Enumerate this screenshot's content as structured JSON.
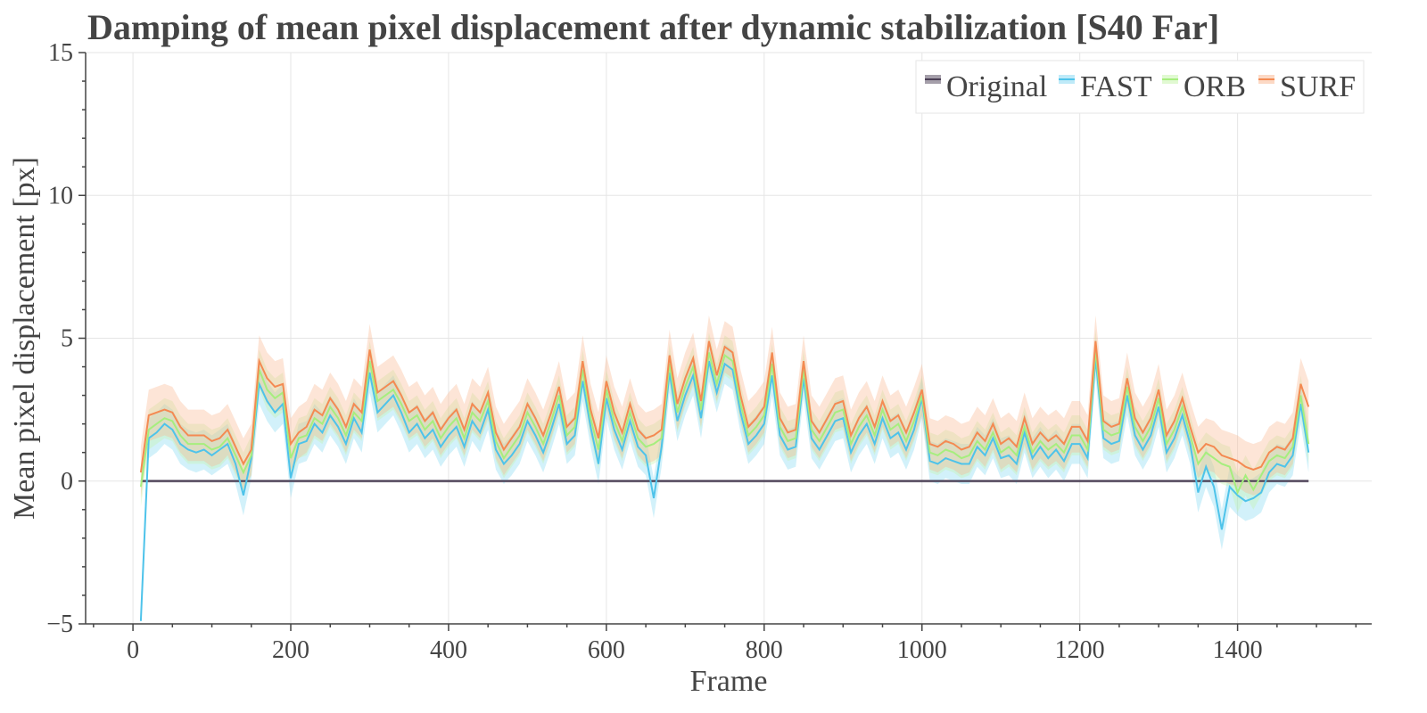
{
  "chart_data": {
    "type": "line",
    "title": "Damping of mean pixel displacement after dynamic stabilization [S40 Far]",
    "xlabel": "Frame",
    "ylabel": "Mean pixel displacement [px]",
    "xlim": [
      -60,
      1570
    ],
    "ylim": [
      -5,
      15
    ],
    "xticks": [
      0,
      200,
      400,
      600,
      800,
      1000,
      1200,
      1400
    ],
    "xtick_labels": [
      "0",
      "200",
      "400",
      "600",
      "800",
      "1000",
      "1200",
      "1400"
    ],
    "yticks": [
      -5,
      0,
      5,
      10,
      15
    ],
    "ytick_labels": [
      "−5",
      "0",
      "5",
      "10",
      "15"
    ],
    "grid": true,
    "legend_position": "top-right",
    "x": [
      10,
      20,
      30,
      40,
      50,
      60,
      70,
      80,
      90,
      100,
      110,
      120,
      130,
      140,
      150,
      160,
      170,
      180,
      190,
      200,
      210,
      220,
      230,
      240,
      250,
      260,
      270,
      280,
      290,
      300,
      310,
      320,
      330,
      340,
      350,
      360,
      370,
      380,
      390,
      400,
      410,
      420,
      430,
      440,
      450,
      460,
      470,
      480,
      490,
      500,
      510,
      520,
      530,
      540,
      550,
      560,
      570,
      580,
      590,
      600,
      610,
      620,
      630,
      640,
      650,
      660,
      670,
      680,
      690,
      700,
      710,
      720,
      730,
      740,
      750,
      760,
      770,
      780,
      790,
      800,
      810,
      820,
      830,
      840,
      850,
      860,
      870,
      880,
      890,
      900,
      910,
      920,
      930,
      940,
      950,
      960,
      970,
      980,
      990,
      1000,
      1010,
      1020,
      1030,
      1040,
      1050,
      1060,
      1070,
      1080,
      1090,
      1100,
      1110,
      1120,
      1130,
      1140,
      1150,
      1160,
      1170,
      1180,
      1190,
      1200,
      1210,
      1220,
      1230,
      1240,
      1250,
      1260,
      1270,
      1280,
      1290,
      1300,
      1310,
      1320,
      1330,
      1340,
      1350,
      1360,
      1370,
      1380,
      1390,
      1400,
      1410,
      1420,
      1430,
      1440,
      1450,
      1460,
      1470,
      1480,
      1490
    ],
    "series": [
      {
        "name": "Original",
        "color": "#4b3f55",
        "band_color": "#4b3f55",
        "values": [
          0,
          0,
          0,
          0,
          0,
          0,
          0,
          0,
          0,
          0,
          0,
          0,
          0,
          0,
          0,
          0,
          0,
          0,
          0,
          0,
          0,
          0,
          0,
          0,
          0,
          0,
          0,
          0,
          0,
          0,
          0,
          0,
          0,
          0,
          0,
          0,
          0,
          0,
          0,
          0,
          0,
          0,
          0,
          0,
          0,
          0,
          0,
          0,
          0,
          0,
          0,
          0,
          0,
          0,
          0,
          0,
          0,
          0,
          0,
          0,
          0,
          0,
          0,
          0,
          0,
          0,
          0,
          0,
          0,
          0,
          0,
          0,
          0,
          0,
          0,
          0,
          0,
          0,
          0,
          0,
          0,
          0,
          0,
          0,
          0,
          0,
          0,
          0,
          0,
          0,
          0,
          0,
          0,
          0,
          0,
          0,
          0,
          0,
          0,
          0,
          0,
          0,
          0,
          0,
          0,
          0,
          0,
          0,
          0,
          0,
          0,
          0,
          0,
          0,
          0,
          0,
          0,
          0,
          0,
          0,
          0,
          0,
          0,
          0,
          0,
          0,
          0,
          0,
          0,
          0,
          0,
          0,
          0,
          0,
          0,
          0,
          0,
          0,
          0,
          0,
          0,
          0,
          0,
          0,
          0,
          0,
          0,
          0,
          0
        ],
        "band": 0.05
      },
      {
        "name": "FAST",
        "color": "#4ec3ea",
        "band_color": "#7fd6f2",
        "values": [
          -4.9,
          1.5,
          1.7,
          2.0,
          1.8,
          1.3,
          1.1,
          1.0,
          1.1,
          0.9,
          1.1,
          1.3,
          0.6,
          -0.5,
          0.8,
          3.4,
          2.8,
          2.4,
          2.7,
          0.1,
          1.3,
          1.4,
          2.0,
          1.7,
          2.3,
          1.9,
          1.3,
          2.2,
          1.7,
          3.8,
          2.4,
          2.7,
          3.0,
          2.4,
          1.7,
          2.0,
          1.5,
          1.8,
          1.2,
          1.6,
          1.9,
          1.2,
          2.1,
          1.7,
          2.5,
          1.1,
          0.6,
          0.9,
          1.3,
          2.1,
          1.6,
          1.0,
          1.8,
          2.7,
          1.3,
          1.6,
          3.5,
          1.9,
          0.6,
          2.9,
          1.8,
          1.1,
          2.1,
          1.2,
          0.9,
          -0.6,
          1.2,
          3.8,
          2.1,
          3.0,
          3.7,
          2.2,
          4.2,
          3.1,
          4.1,
          3.9,
          2.4,
          1.3,
          1.6,
          2.0,
          3.7,
          1.6,
          1.1,
          1.2,
          3.6,
          1.5,
          1.1,
          1.6,
          2.1,
          2.2,
          1.0,
          1.6,
          2.0,
          1.3,
          2.2,
          1.5,
          1.7,
          1.1,
          1.8,
          2.9,
          0.7,
          0.6,
          0.8,
          0.7,
          0.6,
          0.6,
          1.2,
          0.9,
          1.5,
          0.8,
          0.9,
          0.6,
          1.7,
          0.8,
          1.2,
          0.8,
          1.1,
          0.7,
          1.3,
          1.3,
          0.8,
          4.3,
          1.5,
          1.3,
          1.4,
          3.0,
          1.6,
          1.1,
          1.6,
          2.6,
          1.0,
          1.5,
          2.3,
          1.3,
          -0.4,
          0.5,
          -0.2,
          -1.7,
          -0.2,
          -0.5,
          -0.7,
          -0.6,
          -0.4,
          0.3,
          0.6,
          0.5,
          0.9,
          2.7,
          1.0
        ],
        "band": 0.7
      },
      {
        "name": "ORB",
        "color": "#a6ee7e",
        "band_color": "#c4f3a6",
        "values": [
          -0.2,
          1.8,
          2.0,
          2.2,
          2.1,
          1.6,
          1.3,
          1.3,
          1.3,
          1.1,
          1.2,
          1.5,
          0.9,
          0.3,
          0.9,
          3.9,
          3.2,
          2.9,
          3.1,
          0.8,
          1.5,
          1.6,
          2.2,
          2.0,
          2.6,
          2.2,
          1.6,
          2.4,
          2.1,
          4.2,
          2.8,
          3.0,
          3.2,
          2.7,
          2.1,
          2.3,
          1.8,
          2.1,
          1.5,
          1.9,
          2.2,
          1.5,
          2.4,
          2.1,
          2.8,
          1.4,
          0.8,
          1.2,
          1.6,
          2.4,
          1.9,
          1.3,
          2.1,
          3.0,
          1.6,
          1.9,
          3.9,
          2.2,
          1.1,
          3.2,
          2.1,
          1.4,
          2.4,
          1.5,
          1.2,
          1.3,
          1.5,
          4.1,
          2.4,
          3.3,
          4.0,
          2.5,
          4.5,
          3.4,
          4.4,
          4.2,
          2.7,
          1.6,
          1.9,
          2.3,
          4.1,
          1.9,
          1.4,
          1.5,
          3.9,
          1.8,
          1.4,
          1.9,
          2.4,
          2.5,
          1.3,
          1.9,
          2.3,
          1.6,
          2.5,
          1.8,
          2.0,
          1.4,
          2.1,
          3.0,
          1.0,
          0.9,
          1.1,
          1.0,
          0.8,
          0.9,
          1.4,
          1.1,
          1.7,
          1.0,
          1.2,
          0.9,
          1.9,
          1.0,
          1.4,
          1.1,
          1.3,
          1.0,
          1.6,
          1.6,
          1.1,
          4.6,
          1.8,
          1.6,
          1.7,
          3.3,
          1.9,
          1.4,
          1.9,
          2.9,
          1.3,
          1.8,
          2.6,
          1.6,
          0.6,
          1.0,
          0.8,
          0.6,
          0.5,
          -0.4,
          0.2,
          -0.3,
          0.2,
          0.7,
          0.9,
          0.8,
          1.2,
          3.0,
          1.3
        ],
        "band": 0.7
      },
      {
        "name": "SURF",
        "color": "#f48a52",
        "band_color": "#f9b48c",
        "values": [
          0.3,
          2.3,
          2.4,
          2.5,
          2.4,
          1.9,
          1.6,
          1.6,
          1.6,
          1.4,
          1.5,
          1.8,
          1.2,
          0.6,
          1.1,
          4.2,
          3.6,
          3.3,
          3.4,
          1.3,
          1.7,
          1.9,
          2.5,
          2.3,
          2.9,
          2.5,
          1.9,
          2.7,
          2.4,
          4.6,
          3.1,
          3.3,
          3.5,
          3.0,
          2.4,
          2.6,
          2.1,
          2.4,
          1.8,
          2.2,
          2.5,
          1.8,
          2.7,
          2.4,
          3.1,
          1.7,
          1.1,
          1.5,
          1.9,
          2.7,
          2.2,
          1.6,
          2.4,
          3.3,
          1.9,
          2.2,
          4.2,
          2.5,
          1.5,
          3.5,
          2.4,
          1.7,
          2.7,
          1.8,
          1.5,
          1.6,
          1.8,
          4.4,
          2.7,
          3.6,
          4.3,
          2.8,
          4.9,
          3.7,
          4.7,
          4.5,
          3.0,
          1.9,
          2.2,
          2.6,
          4.5,
          2.2,
          1.7,
          1.8,
          4.2,
          2.1,
          1.7,
          2.2,
          2.7,
          2.8,
          1.6,
          2.2,
          2.6,
          1.9,
          2.8,
          2.1,
          2.3,
          1.7,
          2.4,
          3.2,
          1.3,
          1.2,
          1.4,
          1.3,
          1.1,
          1.2,
          1.7,
          1.4,
          2.0,
          1.3,
          1.5,
          1.2,
          2.2,
          1.3,
          1.7,
          1.4,
          1.6,
          1.3,
          1.9,
          1.9,
          1.4,
          4.9,
          2.1,
          1.9,
          2.0,
          3.6,
          2.2,
          1.7,
          2.2,
          3.2,
          1.6,
          2.1,
          2.9,
          1.9,
          1.0,
          1.3,
          1.2,
          0.9,
          0.8,
          0.7,
          0.5,
          0.4,
          0.5,
          1.0,
          1.2,
          1.1,
          1.5,
          3.4,
          2.6
        ],
        "band": 0.9
      }
    ]
  }
}
